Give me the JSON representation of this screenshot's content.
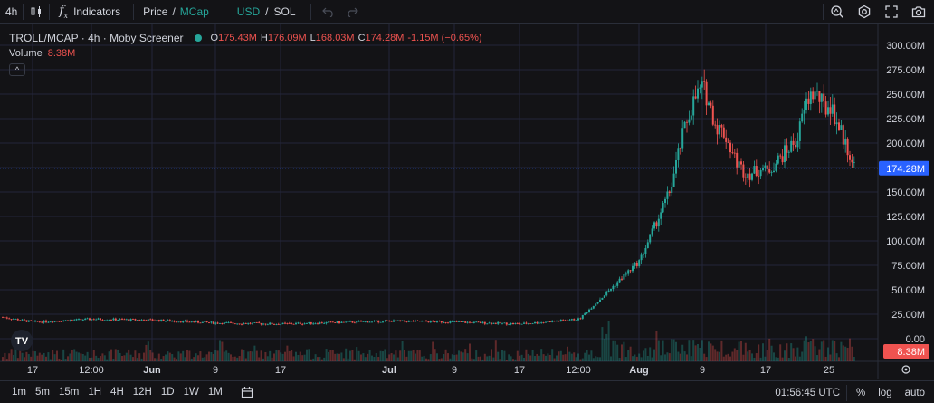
{
  "toolbar": {
    "interval": "4h",
    "indicators_label": "Indicators",
    "price_label": "Price",
    "separator": "/",
    "mcap_label": "MCap",
    "usd_label": "USD",
    "sol_label": "SOL"
  },
  "legend": {
    "symbol": "TROLL/MCAP · 4h · Moby Screener",
    "o_label": "O",
    "o_value": "175.43M",
    "h_label": "H",
    "h_value": "176.09M",
    "l_label": "L",
    "l_value": "168.03M",
    "c_label": "C",
    "c_value": "174.28M",
    "change": "-1.15M (−0.65%)",
    "volume_label": "Volume",
    "volume_value": "8.38M",
    "collapse_glyph": "^"
  },
  "price_axis": {
    "ticks": [
      "300.00M",
      "275.00M",
      "250.00M",
      "225.00M",
      "200.00M",
      "175.00M",
      "150.00M",
      "125.00M",
      "100.00M",
      "75.00M",
      "50.00M",
      "25.00M",
      "0.00"
    ],
    "last_price_label": "174.28M",
    "volume_label": "8.38M"
  },
  "time_axis": {
    "ticks": [
      "17",
      "12:00",
      "Jun",
      "9",
      "17",
      "Jul",
      "9",
      "17",
      "12:00",
      "Aug",
      "9",
      "17",
      "25"
    ]
  },
  "bottombar": {
    "timeframes": [
      "1m",
      "5m",
      "15m",
      "1H",
      "4H",
      "12H",
      "1D",
      "1W",
      "1M"
    ],
    "time": "01:56:45 UTC",
    "percent": "%",
    "log": "log"
  },
  "colors": {
    "up": "#26a69a",
    "down": "#ef5350",
    "last_price_badge": "#2962ff",
    "volume_badge": "#ef5350",
    "background": "#131316",
    "grid": "#23263a"
  },
  "chart_data": {
    "type": "candlestick",
    "y_unit": "M",
    "ylim": [
      0,
      300
    ],
    "last_price": 174.28,
    "last_volume": 8.38,
    "x_labels": [
      "17",
      "12:00",
      "Jun",
      "9",
      "17",
      "Jul",
      "9",
      "17",
      "12:00",
      "Aug",
      "9",
      "17",
      "25"
    ],
    "close_path": [
      {
        "x": "17",
        "y": 17
      },
      {
        "x": "12:00",
        "y": 20
      },
      {
        "x": "Jun",
        "y": 19
      },
      {
        "x": "9",
        "y": 16
      },
      {
        "x": "17",
        "y": 15
      },
      {
        "x": "Jul",
        "y": 18
      },
      {
        "x": "9",
        "y": 17
      },
      {
        "x": "17",
        "y": 15
      },
      {
        "x": "12:00",
        "y": 20
      },
      {
        "x": "Aug",
        "y": 80
      },
      {
        "x": "9",
        "y": 230
      },
      {
        "x": "17",
        "y": 170
      },
      {
        "x": "25",
        "y": 240
      }
    ],
    "ohlc_last": {
      "open": 175.43,
      "high": 176.09,
      "low": 168.03,
      "close": 174.28
    }
  }
}
